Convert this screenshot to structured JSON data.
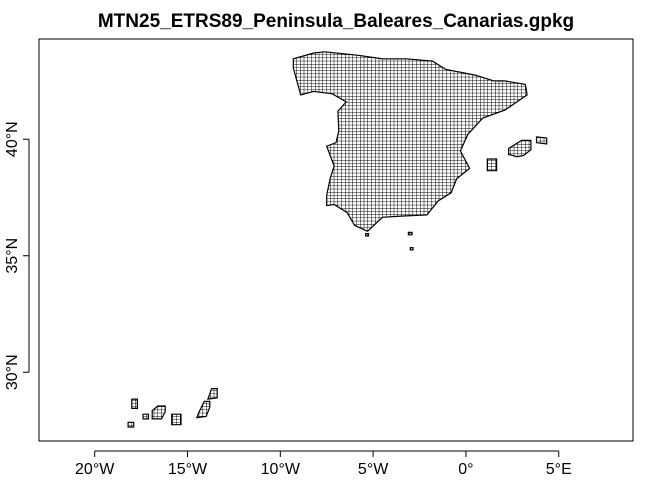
{
  "title": "MTN25_ETRS89_Peninsula_Baleares_Canarias.gpkg",
  "x_axis": {
    "ticks": [
      {
        "value": -20,
        "label": "20°W"
      },
      {
        "value": -15,
        "label": "15°W"
      },
      {
        "value": -10,
        "label": "10°W"
      },
      {
        "value": -5,
        "label": "5°W"
      },
      {
        "value": 0,
        "label": "0°"
      },
      {
        "value": 5,
        "label": "5°E"
      }
    ],
    "range": [
      -23,
      9
    ]
  },
  "y_axis": {
    "ticks": [
      {
        "value": 30,
        "label": "30°N"
      },
      {
        "value": 35,
        "label": "35°N"
      },
      {
        "value": 40,
        "label": "40°N"
      }
    ],
    "range": [
      27.05,
      44.3
    ]
  },
  "regions": [
    {
      "name": "Peninsula",
      "polygon": [
        [
          -9.3,
          43.05
        ],
        [
          -9.3,
          43.45
        ],
        [
          -8.2,
          43.7
        ],
        [
          -7.6,
          43.75
        ],
        [
          -5.8,
          43.6
        ],
        [
          -4.5,
          43.45
        ],
        [
          -3.2,
          43.45
        ],
        [
          -1.8,
          43.35
        ],
        [
          -1.1,
          43.0
        ],
        [
          0.5,
          42.75
        ],
        [
          1.5,
          42.5
        ],
        [
          2.1,
          42.5
        ],
        [
          3.2,
          42.35
        ],
        [
          3.3,
          41.9
        ],
        [
          2.1,
          41.25
        ],
        [
          0.9,
          40.9
        ],
        [
          0.1,
          40.2
        ],
        [
          -0.3,
          39.5
        ],
        [
          0.2,
          38.75
        ],
        [
          -0.5,
          38.3
        ],
        [
          -0.8,
          37.7
        ],
        [
          -1.5,
          37.35
        ],
        [
          -2.1,
          36.75
        ],
        [
          -3.5,
          36.7
        ],
        [
          -4.5,
          36.65
        ],
        [
          -5.3,
          36.05
        ],
        [
          -6.0,
          36.3
        ],
        [
          -6.4,
          36.85
        ],
        [
          -7.1,
          37.2
        ],
        [
          -7.5,
          37.15
        ],
        [
          -7.5,
          37.6
        ],
        [
          -7.3,
          38.35
        ],
        [
          -7.1,
          38.85
        ],
        [
          -7.5,
          39.7
        ],
        [
          -7.0,
          39.85
        ],
        [
          -6.85,
          40.35
        ],
        [
          -6.9,
          41.2
        ],
        [
          -6.45,
          41.6
        ],
        [
          -7.2,
          41.95
        ],
        [
          -8.2,
          42.05
        ],
        [
          -8.9,
          41.9
        ],
        [
          -9.3,
          43.05
        ]
      ]
    },
    {
      "name": "Ceuta",
      "polygon": [
        [
          -5.4,
          35.85
        ],
        [
          -5.25,
          35.85
        ],
        [
          -5.25,
          35.95
        ],
        [
          -5.4,
          35.95
        ]
      ]
    },
    {
      "name": "Alboran",
      "polygon": [
        [
          -3.1,
          35.9
        ],
        [
          -2.9,
          35.9
        ],
        [
          -2.9,
          36.0
        ],
        [
          -3.1,
          36.0
        ]
      ]
    },
    {
      "name": "Melilla",
      "polygon": [
        [
          -3.0,
          35.25
        ],
        [
          -2.85,
          35.25
        ],
        [
          -2.85,
          35.35
        ],
        [
          -3.0,
          35.35
        ]
      ]
    },
    {
      "name": "Ibiza",
      "polygon": [
        [
          1.15,
          38.65
        ],
        [
          1.65,
          38.65
        ],
        [
          1.65,
          39.15
        ],
        [
          1.15,
          39.15
        ]
      ]
    },
    {
      "name": "Mallorca",
      "polygon": [
        [
          2.3,
          39.35
        ],
        [
          2.75,
          39.25
        ],
        [
          3.1,
          39.3
        ],
        [
          3.5,
          39.55
        ],
        [
          3.5,
          39.95
        ],
        [
          3.0,
          39.95
        ],
        [
          2.3,
          39.6
        ]
      ]
    },
    {
      "name": "Menorca",
      "polygon": [
        [
          3.8,
          39.85
        ],
        [
          4.35,
          39.8
        ],
        [
          4.35,
          40.05
        ],
        [
          3.8,
          40.1
        ]
      ]
    },
    {
      "name": "La Palma",
      "polygon": [
        [
          -18.0,
          28.45
        ],
        [
          -17.7,
          28.45
        ],
        [
          -17.7,
          28.85
        ],
        [
          -18.0,
          28.85
        ]
      ]
    },
    {
      "name": "El Hierro",
      "polygon": [
        [
          -18.2,
          27.65
        ],
        [
          -17.9,
          27.65
        ],
        [
          -17.9,
          27.85
        ],
        [
          -18.2,
          27.85
        ]
      ]
    },
    {
      "name": "La Gomera",
      "polygon": [
        [
          -17.4,
          28.0
        ],
        [
          -17.1,
          28.0
        ],
        [
          -17.1,
          28.2
        ],
        [
          -17.4,
          28.2
        ]
      ]
    },
    {
      "name": "Tenerife",
      "polygon": [
        [
          -16.9,
          28.0
        ],
        [
          -16.4,
          28.0
        ],
        [
          -16.2,
          28.3
        ],
        [
          -16.2,
          28.55
        ],
        [
          -16.6,
          28.55
        ],
        [
          -16.9,
          28.35
        ]
      ]
    },
    {
      "name": "Gran Canaria",
      "polygon": [
        [
          -15.85,
          27.75
        ],
        [
          -15.35,
          27.75
        ],
        [
          -15.35,
          28.2
        ],
        [
          -15.85,
          28.2
        ]
      ]
    },
    {
      "name": "Fuerteventura",
      "polygon": [
        [
          -14.5,
          28.05
        ],
        [
          -14.0,
          28.1
        ],
        [
          -13.8,
          28.5
        ],
        [
          -13.8,
          28.75
        ],
        [
          -14.1,
          28.75
        ],
        [
          -14.4,
          28.25
        ]
      ]
    },
    {
      "name": "Lanzarote",
      "polygon": [
        [
          -13.9,
          28.85
        ],
        [
          -13.4,
          28.9
        ],
        [
          -13.4,
          29.3
        ],
        [
          -13.7,
          29.3
        ]
      ]
    }
  ]
}
